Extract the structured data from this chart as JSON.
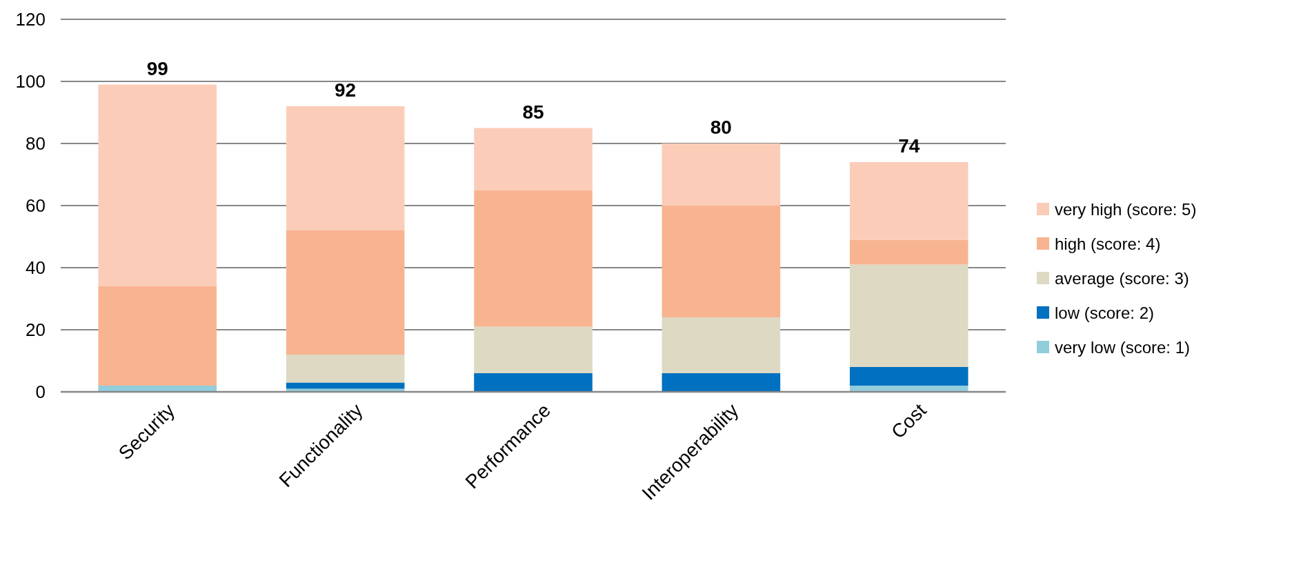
{
  "chart_data": {
    "type": "bar",
    "stacked": true,
    "categories": [
      "Security",
      "Functionality",
      "Performance",
      "Interoperability",
      "Cost"
    ],
    "series": [
      {
        "name": "very low (score: 1)",
        "color": "#92cddc",
        "values": [
          2,
          1,
          0,
          0,
          2
        ]
      },
      {
        "name": "low (score: 2)",
        "color": "#0070c0",
        "values": [
          0,
          2,
          6,
          6,
          6
        ]
      },
      {
        "name": "average (score: 3)",
        "color": "#ddd9c3",
        "values": [
          0,
          9,
          15,
          18,
          33
        ]
      },
      {
        "name": "high (score: 4)",
        "color": "#f8b490",
        "values": [
          32,
          40,
          44,
          36,
          8
        ]
      },
      {
        "name": "very high (score: 5)",
        "color": "#fbcdb8",
        "values": [
          65,
          40,
          20,
          20,
          25
        ]
      }
    ],
    "totals": [
      "99",
      "92",
      "85",
      "80",
      "74"
    ],
    "ylim": [
      0,
      120
    ],
    "yticks": [
      0,
      20,
      40,
      60,
      80,
      100,
      120
    ],
    "grid": "y",
    "legend": "right"
  }
}
